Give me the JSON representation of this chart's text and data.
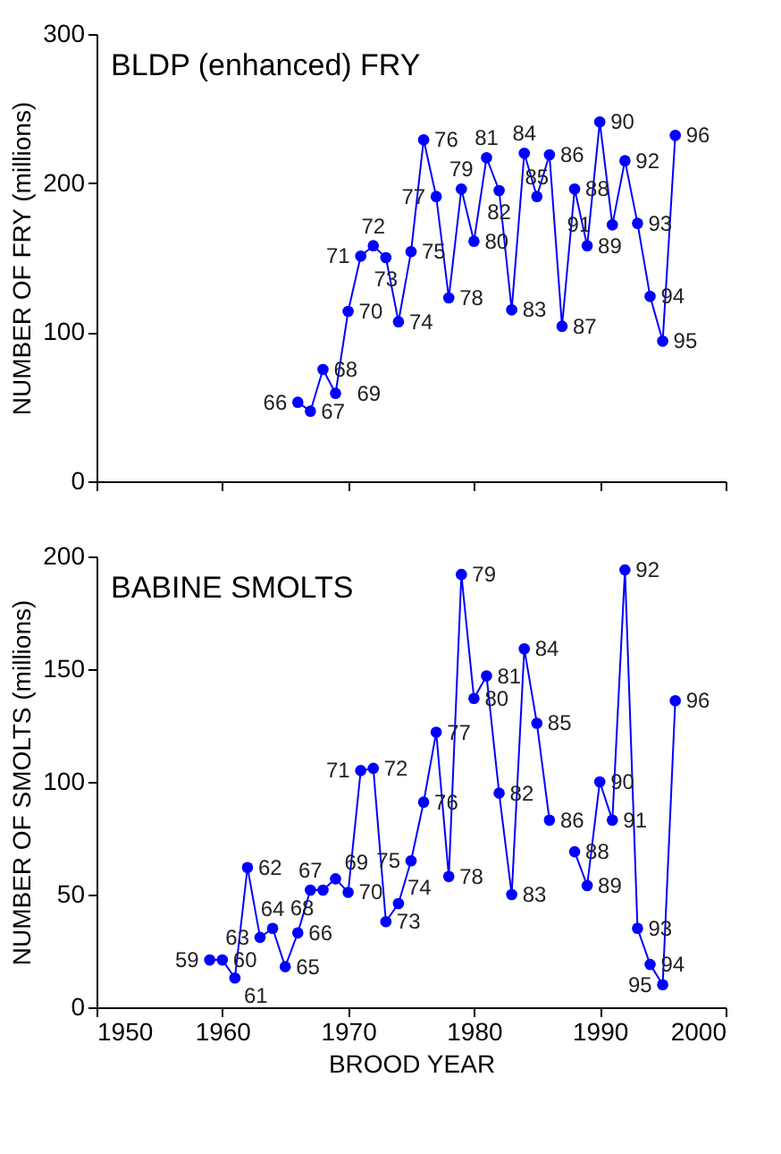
{
  "chart_data": [
    {
      "type": "line",
      "title": "BLDP (enhanced) FRY",
      "ylabel": "NUMBER OF FRY (millions)",
      "xlim": [
        1950,
        2000
      ],
      "xticks": [
        1950,
        1960,
        1970,
        1980,
        1990,
        2000
      ],
      "ylim": [
        0,
        300
      ],
      "yticks": [
        0,
        100,
        200,
        300
      ],
      "tick_labels": "y",
      "marker": "circle",
      "line_style": "solid",
      "series": [
        {
          "color": "#0000ff",
          "x": [
            1966,
            1967,
            1968,
            1969,
            1970,
            1971,
            1972,
            1973,
            1974,
            1975,
            1976,
            1977,
            1978,
            1979,
            1980,
            1981,
            1982,
            1983,
            1984,
            1985,
            1986,
            1987,
            1988,
            1989,
            1990,
            1991,
            1992,
            1993,
            1994,
            1995,
            1996
          ],
          "values": [
            53,
            47,
            75,
            59,
            114,
            151,
            158,
            150,
            107,
            154,
            229,
            191,
            123,
            196,
            161,
            217,
            195,
            115,
            220,
            191,
            219,
            104,
            196,
            158,
            241,
            172,
            215,
            173,
            124,
            94,
            232
          ]
        }
      ],
      "annotations": [
        {
          "text": "66",
          "x": 1966,
          "y": 53
        },
        {
          "text": "67",
          "x": 1967,
          "y": 47
        },
        {
          "text": "68",
          "x": 1968,
          "y": 75
        },
        {
          "text": "69",
          "x": 1969,
          "y": 59
        },
        {
          "text": "70",
          "x": 1970,
          "y": 114
        },
        {
          "text": "71",
          "x": 1971,
          "y": 151
        },
        {
          "text": "72",
          "x": 1972,
          "y": 158
        },
        {
          "text": "73",
          "x": 1973,
          "y": 150
        },
        {
          "text": "74",
          "x": 1974,
          "y": 107
        },
        {
          "text": "75",
          "x": 1975,
          "y": 154
        },
        {
          "text": "76",
          "x": 1976,
          "y": 229
        },
        {
          "text": "77",
          "x": 1977,
          "y": 191
        },
        {
          "text": "78",
          "x": 1978,
          "y": 123
        },
        {
          "text": "79",
          "x": 1979,
          "y": 196
        },
        {
          "text": "80",
          "x": 1980,
          "y": 161
        },
        {
          "text": "81",
          "x": 1981,
          "y": 217
        },
        {
          "text": "82",
          "x": 1982,
          "y": 195
        },
        {
          "text": "83",
          "x": 1983,
          "y": 115
        },
        {
          "text": "84",
          "x": 1984,
          "y": 220
        },
        {
          "text": "85",
          "x": 1985,
          "y": 191
        },
        {
          "text": "86",
          "x": 1986,
          "y": 219
        },
        {
          "text": "87",
          "x": 1987,
          "y": 104
        },
        {
          "text": "88",
          "x": 1988,
          "y": 196
        },
        {
          "text": "89",
          "x": 1989,
          "y": 158
        },
        {
          "text": "90",
          "x": 1990,
          "y": 241
        },
        {
          "text": "91",
          "x": 1991,
          "y": 172
        },
        {
          "text": "92",
          "x": 1992,
          "y": 215
        },
        {
          "text": "93",
          "x": 1993,
          "y": 173
        },
        {
          "text": "94",
          "x": 1994,
          "y": 124
        },
        {
          "text": "95",
          "x": 1995,
          "y": 94
        },
        {
          "text": "96",
          "x": 1996,
          "y": 232
        }
      ]
    },
    {
      "type": "line",
      "title": "BABINE SMOLTS",
      "ylabel": "NUMBER OF SMOLTS (millions)",
      "xlabel": "BROOD YEAR",
      "xlim": [
        1950,
        2000
      ],
      "xticks": [
        1950,
        1960,
        1970,
        1980,
        1990,
        2000
      ],
      "ylim": [
        0,
        200
      ],
      "yticks": [
        0,
        50,
        100,
        150,
        200
      ],
      "marker": "circle",
      "line_style": "solid",
      "series": [
        {
          "color": "#0000ff",
          "x": [
            1959,
            1960,
            1961,
            1962,
            1963,
            1964,
            1965,
            1966,
            1967,
            1968,
            1969,
            1970,
            1971,
            1972,
            1973,
            1974,
            1975,
            1976,
            1977,
            1978,
            1979,
            1980,
            1981,
            1982,
            1983,
            1984,
            1985,
            1986,
            1987,
            1988,
            1989,
            1990,
            1991,
            1992,
            1993,
            1994,
            1995,
            1996
          ],
          "values": [
            21,
            21,
            13,
            62,
            31,
            35,
            18,
            33,
            52,
            52,
            57,
            51,
            105,
            106,
            38,
            46,
            65,
            91,
            122,
            58,
            192,
            137,
            147,
            95,
            50,
            159,
            126,
            83,
            null,
            69,
            54,
            100,
            83,
            194,
            35,
            19,
            10,
            136
          ]
        }
      ],
      "annotations": [
        {
          "text": "59",
          "x": 1959,
          "y": 21
        },
        {
          "text": "60",
          "x": 1960,
          "y": 21
        },
        {
          "text": "61",
          "x": 1961,
          "y": 13
        },
        {
          "text": "62",
          "x": 1962,
          "y": 62
        },
        {
          "text": "63",
          "x": 1963,
          "y": 31
        },
        {
          "text": "64",
          "x": 1964,
          "y": 35
        },
        {
          "text": "65",
          "x": 1965,
          "y": 18
        },
        {
          "text": "66",
          "x": 1966,
          "y": 33
        },
        {
          "text": "67",
          "x": 1967,
          "y": 52
        },
        {
          "text": "68",
          "x": 1968,
          "y": 52
        },
        {
          "text": "69",
          "x": 1969,
          "y": 57
        },
        {
          "text": "70",
          "x": 1970,
          "y": 51
        },
        {
          "text": "71",
          "x": 1971,
          "y": 105
        },
        {
          "text": "72",
          "x": 1972,
          "y": 106
        },
        {
          "text": "73",
          "x": 1973,
          "y": 38
        },
        {
          "text": "74",
          "x": 1974,
          "y": 46
        },
        {
          "text": "75",
          "x": 1975,
          "y": 65
        },
        {
          "text": "76",
          "x": 1976,
          "y": 91
        },
        {
          "text": "77",
          "x": 1977,
          "y": 122
        },
        {
          "text": "78",
          "x": 1978,
          "y": 58
        },
        {
          "text": "79",
          "x": 1979,
          "y": 192
        },
        {
          "text": "80",
          "x": 1980,
          "y": 137
        },
        {
          "text": "81",
          "x": 1981,
          "y": 147
        },
        {
          "text": "82",
          "x": 1982,
          "y": 95
        },
        {
          "text": "83",
          "x": 1983,
          "y": 50
        },
        {
          "text": "84",
          "x": 1984,
          "y": 159
        },
        {
          "text": "85",
          "x": 1985,
          "y": 126
        },
        {
          "text": "86",
          "x": 1986,
          "y": 83
        },
        {
          "text": "88",
          "x": 1988,
          "y": 69
        },
        {
          "text": "89",
          "x": 1989,
          "y": 54
        },
        {
          "text": "90",
          "x": 1990,
          "y": 100
        },
        {
          "text": "91",
          "x": 1991,
          "y": 83
        },
        {
          "text": "92",
          "x": 1992,
          "y": 194
        },
        {
          "text": "93",
          "x": 1993,
          "y": 35
        },
        {
          "text": "94",
          "x": 1994,
          "y": 19
        },
        {
          "text": "95",
          "x": 1995,
          "y": 10
        },
        {
          "text": "96",
          "x": 1996,
          "y": 136
        }
      ]
    }
  ]
}
